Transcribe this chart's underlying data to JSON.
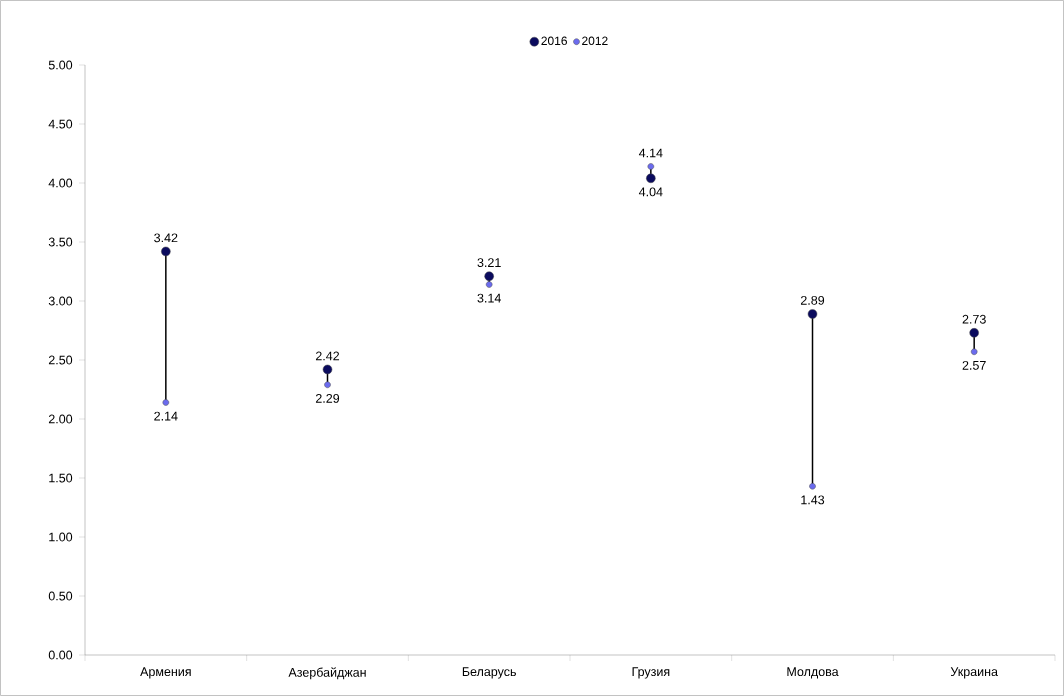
{
  "chart_data": {
    "type": "scatter",
    "categories": [
      "Армения",
      "Азербайджан",
      "Беларусь",
      "Грузия",
      "Молдова",
      "Украина"
    ],
    "series": [
      {
        "name": "2016",
        "color": "#0b0b5e",
        "values": [
          3.42,
          2.42,
          3.21,
          4.04,
          2.89,
          2.73
        ]
      },
      {
        "name": "2012",
        "color": "#6b6bee",
        "values": [
          2.14,
          2.29,
          3.14,
          4.14,
          1.43,
          2.57
        ]
      }
    ],
    "ylim": [
      0,
      5
    ],
    "yticks": [
      {
        "value": 0,
        "label": "0.00"
      },
      {
        "value": 0.5,
        "label": "0.50"
      },
      {
        "value": 1,
        "label": "1.00"
      },
      {
        "value": 1.5,
        "label": "1.50"
      },
      {
        "value": 2,
        "label": "2.00"
      },
      {
        "value": 2.5,
        "label": "2.50"
      },
      {
        "value": 3,
        "label": "3.00"
      },
      {
        "value": 3.5,
        "label": "3.50"
      },
      {
        "value": 4,
        "label": "4.00"
      },
      {
        "value": 4.5,
        "label": "4.50"
      },
      {
        "value": 5,
        "label": "5.00"
      }
    ],
    "data_labels": true,
    "legend": "top",
    "marker": "circle",
    "grid": false
  }
}
